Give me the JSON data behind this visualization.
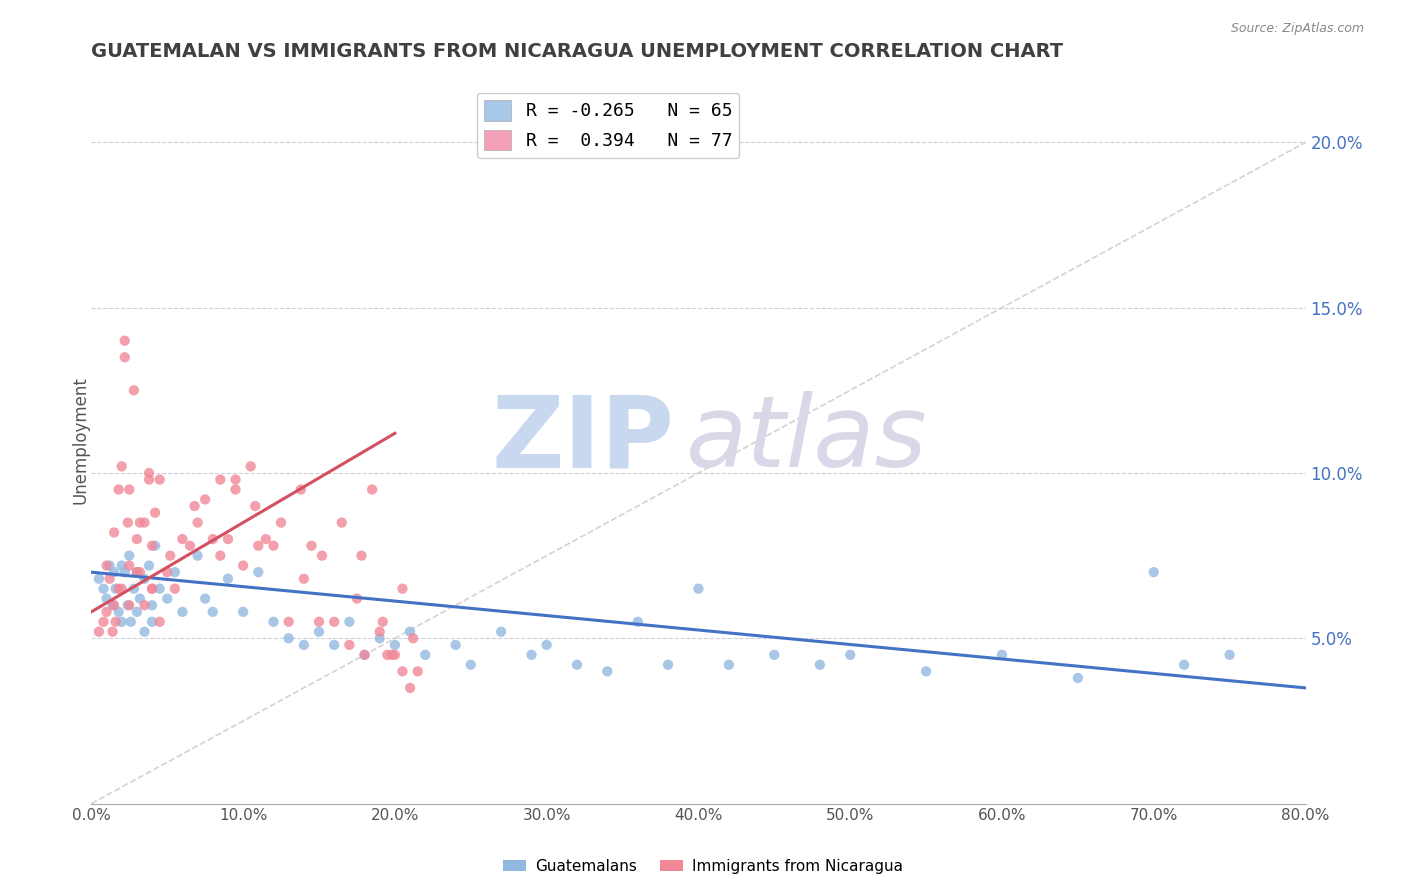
{
  "title": "GUATEMALAN VS IMMIGRANTS FROM NICARAGUA UNEMPLOYMENT CORRELATION CHART",
  "source_text": "Source: ZipAtlas.com",
  "xlabel_ticks": [
    "0.0%",
    "10.0%",
    "20.0%",
    "30.0%",
    "40.0%",
    "50.0%",
    "60.0%",
    "70.0%",
    "80.0%"
  ],
  "ylabel_ticks_right": [
    "5.0%",
    "10.0%",
    "15.0%",
    "20.0%"
  ],
  "ylabel_label": "Unemployment",
  "xlim": [
    0.0,
    80.0
  ],
  "ylim": [
    0.0,
    22.0
  ],
  "legend_entries": [
    {
      "label": "R = -0.265   N = 65",
      "color": "#a8c8e8"
    },
    {
      "label": "R =  0.394   N = 77",
      "color": "#f4a0b8"
    }
  ],
  "scatter_blue": {
    "color": "#92b8e0",
    "points_x": [
      0.5,
      0.8,
      1.0,
      1.2,
      1.4,
      1.5,
      1.6,
      1.8,
      2.0,
      2.0,
      2.2,
      2.4,
      2.5,
      2.6,
      2.8,
      3.0,
      3.0,
      3.2,
      3.5,
      3.5,
      3.8,
      4.0,
      4.0,
      4.2,
      4.5,
      5.0,
      5.5,
      6.0,
      7.0,
      7.5,
      8.0,
      9.0,
      10.0,
      11.0,
      12.0,
      13.0,
      14.0,
      15.0,
      16.0,
      17.0,
      18.0,
      19.0,
      20.0,
      21.0,
      22.0,
      24.0,
      25.0,
      27.0,
      29.0,
      30.0,
      32.0,
      34.0,
      36.0,
      38.0,
      40.0,
      42.0,
      45.0,
      48.0,
      50.0,
      55.0,
      60.0,
      65.0,
      70.0,
      72.0,
      75.0
    ],
    "points_y": [
      6.8,
      6.5,
      6.2,
      7.2,
      6.0,
      7.0,
      6.5,
      5.8,
      7.2,
      5.5,
      7.0,
      6.0,
      7.5,
      5.5,
      6.5,
      7.0,
      5.8,
      6.2,
      6.8,
      5.2,
      7.2,
      6.0,
      5.5,
      7.8,
      6.5,
      6.2,
      7.0,
      5.8,
      7.5,
      6.2,
      5.8,
      6.8,
      5.8,
      7.0,
      5.5,
      5.0,
      4.8,
      5.2,
      4.8,
      5.5,
      4.5,
      5.0,
      4.8,
      5.2,
      4.5,
      4.8,
      4.2,
      5.2,
      4.5,
      4.8,
      4.2,
      4.0,
      5.5,
      4.2,
      6.5,
      4.2,
      4.5,
      4.2,
      4.5,
      4.0,
      4.5,
      3.8,
      7.0,
      4.2,
      4.5
    ]
  },
  "scatter_pink": {
    "color": "#f08898",
    "points_x": [
      0.5,
      0.8,
      1.0,
      1.0,
      1.2,
      1.4,
      1.5,
      1.5,
      1.6,
      1.8,
      2.0,
      2.0,
      2.2,
      2.4,
      2.5,
      2.5,
      2.8,
      3.0,
      3.0,
      3.2,
      3.5,
      3.5,
      3.8,
      4.0,
      4.0,
      4.2,
      4.5,
      4.5,
      5.0,
      5.5,
      6.0,
      6.5,
      7.0,
      7.5,
      8.0,
      8.5,
      9.0,
      9.5,
      10.0,
      10.5,
      11.0,
      11.5,
      12.0,
      13.0,
      14.0,
      14.5,
      15.0,
      16.0,
      17.0,
      17.5,
      18.0,
      19.0,
      19.5,
      20.0,
      20.5,
      21.0,
      21.5,
      2.2,
      3.8,
      5.2,
      6.8,
      8.5,
      9.5,
      10.8,
      12.5,
      13.8,
      15.2,
      16.5,
      17.8,
      18.5,
      19.2,
      19.8,
      20.5,
      21.2,
      1.8,
      2.5,
      3.2,
      4.0
    ],
    "points_y": [
      5.2,
      5.5,
      5.8,
      7.2,
      6.8,
      5.2,
      8.2,
      6.0,
      5.5,
      6.5,
      6.5,
      10.2,
      14.0,
      8.5,
      7.2,
      6.0,
      12.5,
      7.0,
      8.0,
      7.0,
      8.5,
      6.0,
      9.8,
      7.8,
      6.5,
      8.8,
      9.8,
      5.5,
      7.0,
      6.5,
      8.0,
      7.8,
      8.5,
      9.2,
      8.0,
      9.8,
      8.0,
      9.8,
      7.2,
      10.2,
      7.8,
      8.0,
      7.8,
      5.5,
      6.8,
      7.8,
      5.5,
      5.5,
      4.8,
      6.2,
      4.5,
      5.2,
      4.5,
      4.5,
      4.0,
      3.5,
      4.0,
      13.5,
      10.0,
      7.5,
      9.0,
      7.5,
      9.5,
      9.0,
      8.5,
      9.5,
      7.5,
      8.5,
      7.5,
      9.5,
      5.5,
      4.5,
      6.5,
      5.0,
      9.5,
      9.5,
      8.5,
      6.5
    ]
  },
  "trend_blue": {
    "color": "#4472c4",
    "x": [
      0.0,
      80.0
    ],
    "y": [
      7.0,
      3.5
    ]
  },
  "trend_pink": {
    "color": "#d45060",
    "x": [
      0.0,
      20.0
    ],
    "y": [
      5.8,
      11.2
    ]
  },
  "diagonal_ref": {
    "color": "#c8c8c8",
    "x": [
      0.0,
      80.0
    ],
    "y": [
      0.0,
      20.0
    ],
    "linestyle": "--"
  },
  "watermark_zip": "ZIP",
  "watermark_atlas": "atlas",
  "watermark_color": "#dce4f0",
  "background_color": "#ffffff",
  "title_color": "#404040",
  "title_fontsize": 14,
  "right_axis_color": "#4472c4"
}
